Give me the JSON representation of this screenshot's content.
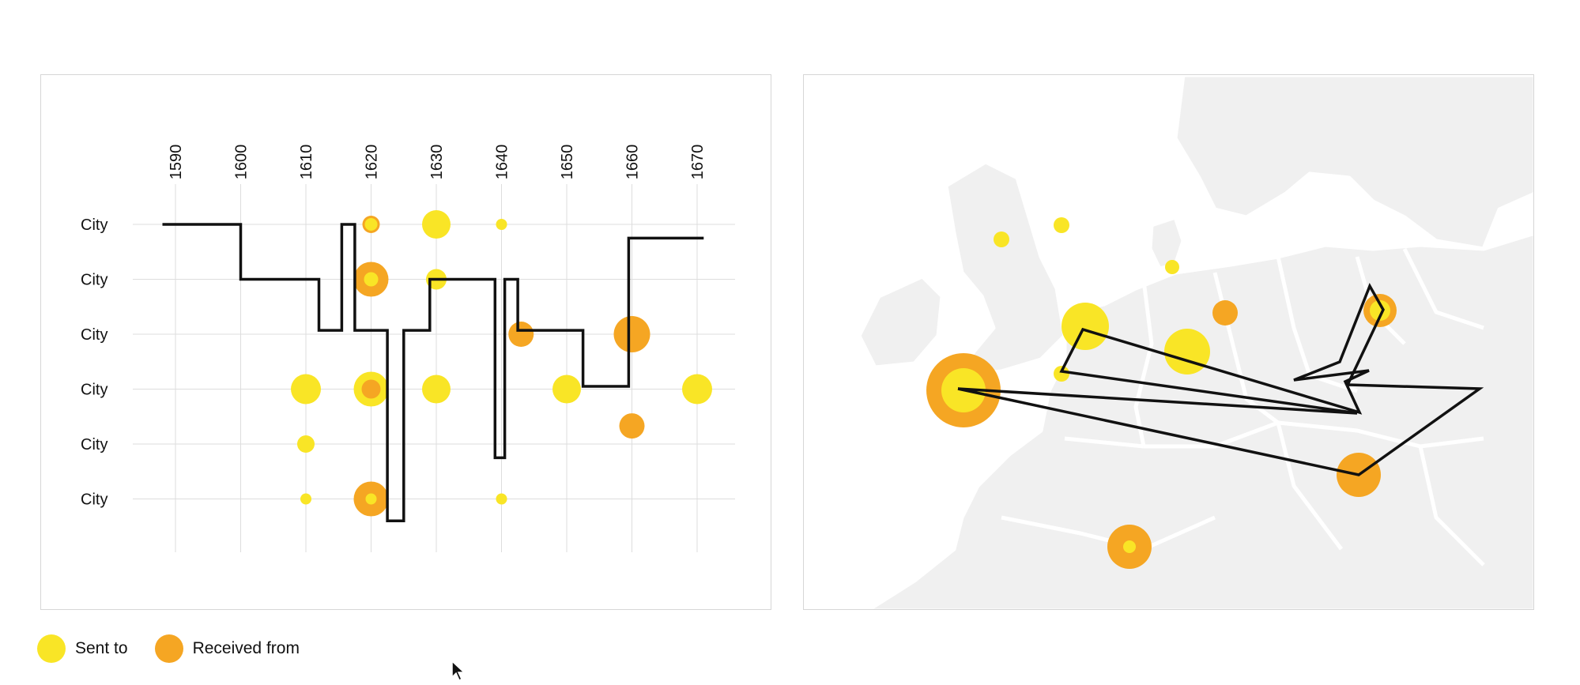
{
  "legend": {
    "sent_label": "Sent to",
    "received_label": "Received from"
  },
  "colors": {
    "sent": "#f9e526",
    "received": "#f5a623",
    "line": "#111111",
    "grid": "#dddddd",
    "land": "#f0f0f0",
    "border": "#ffffff"
  },
  "chart_data": {
    "type": "scatter",
    "x_ticks": [
      1590,
      1600,
      1610,
      1620,
      1630,
      1640,
      1650,
      1660,
      1670
    ],
    "xlim": [
      1590,
      1670
    ],
    "categories": [
      "City",
      "City",
      "City",
      "City",
      "City",
      "City"
    ],
    "series": [
      {
        "name": "Sent to",
        "points": [
          {
            "x": 1620,
            "row": 0,
            "size": 8
          },
          {
            "x": 1630,
            "row": 0,
            "size": 18
          },
          {
            "x": 1640,
            "row": 0,
            "size": 7
          },
          {
            "x": 1620,
            "row": 1,
            "size": 9
          },
          {
            "x": 1630,
            "row": 1,
            "size": 13
          },
          {
            "x": 1610,
            "row": 3,
            "size": 19
          },
          {
            "x": 1620,
            "row": 3,
            "size": 22
          },
          {
            "x": 1630,
            "row": 3,
            "size": 18
          },
          {
            "x": 1650,
            "row": 3,
            "size": 18
          },
          {
            "x": 1670,
            "row": 3,
            "size": 19
          },
          {
            "x": 1610,
            "row": 4,
            "size": 11
          },
          {
            "x": 1610,
            "row": 5,
            "size": 7
          },
          {
            "x": 1620,
            "row": 5,
            "size": 7
          },
          {
            "x": 1640,
            "row": 5,
            "size": 7
          }
        ]
      },
      {
        "name": "Received from",
        "points": [
          {
            "x": 1620,
            "row": 0,
            "size": 11
          },
          {
            "x": 1620,
            "row": 1,
            "size": 22
          },
          {
            "x": 1643,
            "row": 2,
            "size": 16
          },
          {
            "x": 1660,
            "row": 2,
            "size": 23
          },
          {
            "x": 1620,
            "row": 3,
            "size": 12
          },
          {
            "x": 1660,
            "row": 3.67,
            "size": 16
          },
          {
            "x": 1620,
            "row": 5,
            "size": 22
          }
        ]
      }
    ],
    "path": [
      {
        "x": 1588,
        "row": 0
      },
      {
        "x": 1600,
        "row": 0
      },
      {
        "x": 1600,
        "row": 1
      },
      {
        "x": 1612,
        "row": 1
      },
      {
        "x": 1612,
        "row": 1.93
      },
      {
        "x": 1615.5,
        "row": 1.93
      },
      {
        "x": 1615.5,
        "row": 0
      },
      {
        "x": 1617.5,
        "row": 0
      },
      {
        "x": 1617.5,
        "row": 1.93
      },
      {
        "x": 1622.5,
        "row": 1.93
      },
      {
        "x": 1622.5,
        "row": 5.4
      },
      {
        "x": 1625,
        "row": 5.4
      },
      {
        "x": 1625,
        "row": 1.93
      },
      {
        "x": 1629,
        "row": 1.93
      },
      {
        "x": 1629,
        "row": 1
      },
      {
        "x": 1639,
        "row": 1
      },
      {
        "x": 1639,
        "row": 4.25
      },
      {
        "x": 1640.5,
        "row": 4.25
      },
      {
        "x": 1640.5,
        "row": 1
      },
      {
        "x": 1642.5,
        "row": 1
      },
      {
        "x": 1642.5,
        "row": 1.93
      },
      {
        "x": 1652.5,
        "row": 1.93
      },
      {
        "x": 1652.5,
        "row": 2.95
      },
      {
        "x": 1659.5,
        "row": 2.95
      },
      {
        "x": 1659.5,
        "row": 0.25
      },
      {
        "x": 1671,
        "row": 0.25
      }
    ]
  },
  "map_data": {
    "sites": [
      {
        "type": "received",
        "size": 47
      },
      {
        "type": "sent",
        "size": 28
      },
      {
        "type": "sent",
        "size": 30
      },
      {
        "type": "sent",
        "size": 29
      },
      {
        "type": "sent",
        "size": 10
      },
      {
        "type": "sent",
        "size": 10
      },
      {
        "type": "sent",
        "size": 10
      },
      {
        "type": "sent",
        "size": 9
      },
      {
        "type": "received",
        "size": 16
      },
      {
        "type": "received",
        "size": 21
      },
      {
        "type": "sent",
        "size": 13
      },
      {
        "type": "received",
        "size": 28
      },
      {
        "type": "received",
        "size": 28
      },
      {
        "type": "sent",
        "size": 8
      }
    ]
  }
}
